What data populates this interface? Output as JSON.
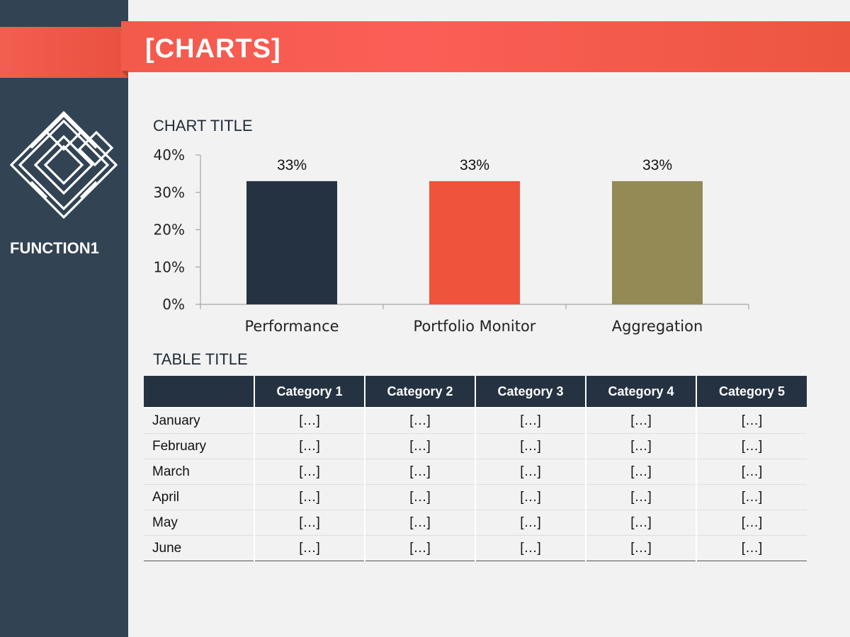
{
  "header": {
    "title": "[CHARTS]"
  },
  "sidebar": {
    "label": "FUNCTION1",
    "logo_icon": "diamond-knot-logo"
  },
  "colors": {
    "sidebar": "#324354",
    "accent": "#f25a4b",
    "dark": "#253241",
    "olive": "#948a56"
  },
  "chart_data": {
    "type": "bar",
    "title": "CHART TITLE",
    "categories": [
      "Performance",
      "Portfolio Monitor",
      "Aggregation"
    ],
    "values": [
      33,
      33,
      33
    ],
    "value_labels": [
      "33%",
      "33%",
      "33%"
    ],
    "bar_colors": [
      "#253241",
      "#f0533b",
      "#948a56"
    ],
    "ylim": [
      0,
      40
    ],
    "yticks": [
      "0%",
      "10%",
      "20%",
      "30%",
      "40%"
    ],
    "xlabel": "",
    "ylabel": "",
    "grid": false,
    "legend": "none"
  },
  "table": {
    "title": "TABLE TITLE",
    "columns": [
      "",
      "Category 1",
      "Category 2",
      "Category 3",
      "Category 4",
      "Category 5"
    ],
    "rows": [
      {
        "label": "January",
        "cells": [
          "[…]",
          "[…]",
          "[…]",
          "[…]",
          "[…]"
        ]
      },
      {
        "label": "February",
        "cells": [
          "[…]",
          "[…]",
          "[…]",
          "[…]",
          "[…]"
        ]
      },
      {
        "label": "March",
        "cells": [
          "[…]",
          "[…]",
          "[…]",
          "[…]",
          "[…]"
        ]
      },
      {
        "label": "April",
        "cells": [
          "[…]",
          "[…]",
          "[…]",
          "[…]",
          "[…]"
        ]
      },
      {
        "label": "May",
        "cells": [
          "[…]",
          "[…]",
          "[…]",
          "[…]",
          "[…]"
        ]
      },
      {
        "label": "June",
        "cells": [
          "[…]",
          "[…]",
          "[…]",
          "[…]",
          "[…]"
        ]
      }
    ]
  }
}
